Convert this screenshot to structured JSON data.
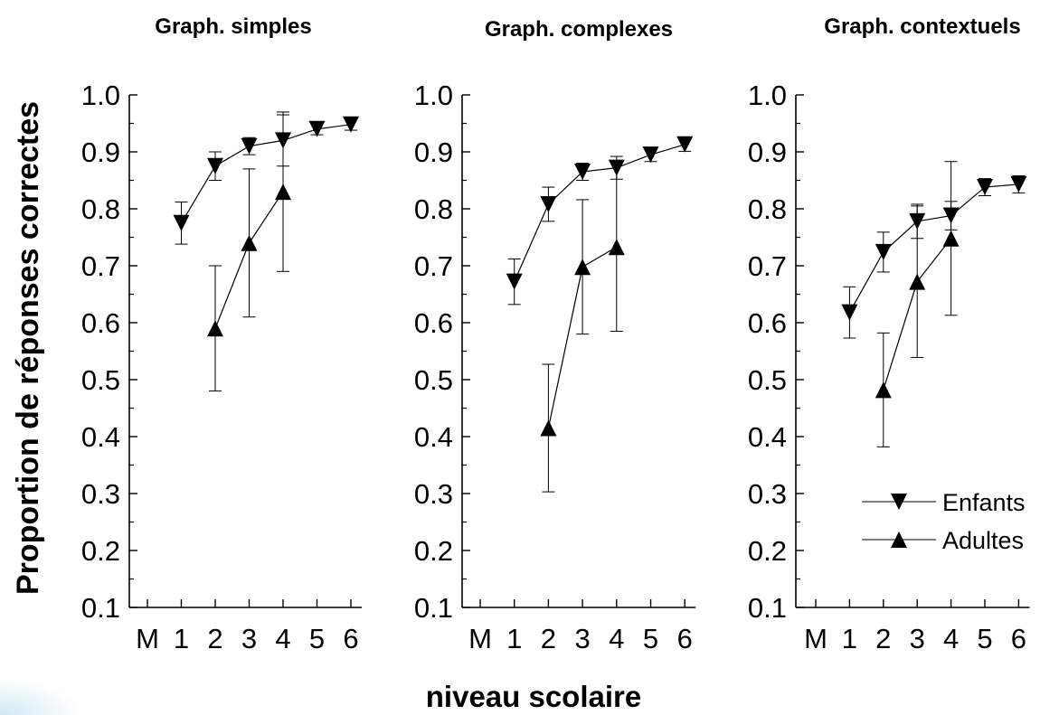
{
  "figure": {
    "ylabel": "Proportion de réponses correctes",
    "xlabel": "niveau scolaire"
  },
  "colors": {
    "ink": "#000000",
    "background": "#ffffff"
  },
  "chart_data": [
    {
      "type": "line",
      "title": "Graph. simples",
      "categories": [
        "M",
        "1",
        "2",
        "3",
        "4",
        "5",
        "6"
      ],
      "yticks": [
        "0.1",
        "0.2",
        "0.3",
        "0.4",
        "0.5",
        "0.6",
        "0.7",
        "0.8",
        "0.9",
        "1.0"
      ],
      "ylim": [
        0.1,
        1.0
      ],
      "grid": false,
      "series": [
        {
          "name": "Enfants",
          "marker": "triangle-down",
          "values": [
            null,
            0.775,
            0.875,
            0.91,
            0.92,
            0.94,
            0.948
          ],
          "err": [
            null,
            0.037,
            0.025,
            0.015,
            0.045,
            0.01,
            0.01
          ]
        },
        {
          "name": "Adultes",
          "marker": "triangle-up",
          "values": [
            null,
            null,
            0.59,
            0.74,
            0.83,
            null,
            null
          ],
          "err": [
            null,
            null,
            0.11,
            0.13,
            0.14,
            null,
            null
          ]
        }
      ]
    },
    {
      "type": "line",
      "title": "Graph. complexes",
      "categories": [
        "M",
        "1",
        "2",
        "3",
        "4",
        "5",
        "6"
      ],
      "yticks": [
        "0.1",
        "0.2",
        "0.3",
        "0.4",
        "0.5",
        "0.6",
        "0.7",
        "0.8",
        "0.9",
        "1.0"
      ],
      "ylim": [
        0.1,
        1.0
      ],
      "grid": false,
      "series": [
        {
          "name": "Enfants",
          "marker": "triangle-down",
          "values": [
            null,
            0.672,
            0.808,
            0.865,
            0.872,
            0.895,
            0.913
          ],
          "err": [
            null,
            0.04,
            0.03,
            0.015,
            0.02,
            0.012,
            0.012
          ]
        },
        {
          "name": "Adultes",
          "marker": "triangle-up",
          "values": [
            null,
            null,
            0.415,
            0.698,
            0.733,
            null,
            null
          ],
          "err": [
            null,
            null,
            0.112,
            0.118,
            0.148,
            null,
            null
          ]
        }
      ]
    },
    {
      "type": "line",
      "title": "Graph. contextuels",
      "categories": [
        "M",
        "1",
        "2",
        "3",
        "4",
        "5",
        "6"
      ],
      "yticks": [
        "0.1",
        "0.2",
        "0.3",
        "0.4",
        "0.5",
        "0.6",
        "0.7",
        "0.8",
        "0.9",
        "1.0"
      ],
      "ylim": [
        0.1,
        1.0
      ],
      "grid": false,
      "legend": {
        "position": "bottom-right",
        "entries": [
          "Enfants",
          "Adultes"
        ]
      },
      "series": [
        {
          "name": "Enfants",
          "marker": "triangle-down",
          "values": [
            null,
            0.618,
            0.724,
            0.778,
            0.788,
            0.838,
            0.843
          ],
          "err": [
            null,
            0.045,
            0.035,
            0.03,
            0.025,
            0.015,
            0.015
          ]
        },
        {
          "name": "Adultes",
          "marker": "triangle-up",
          "values": [
            null,
            null,
            0.482,
            0.672,
            0.748,
            null,
            null
          ],
          "err": [
            null,
            null,
            0.1,
            0.133,
            0.135,
            null,
            null
          ]
        }
      ]
    }
  ]
}
